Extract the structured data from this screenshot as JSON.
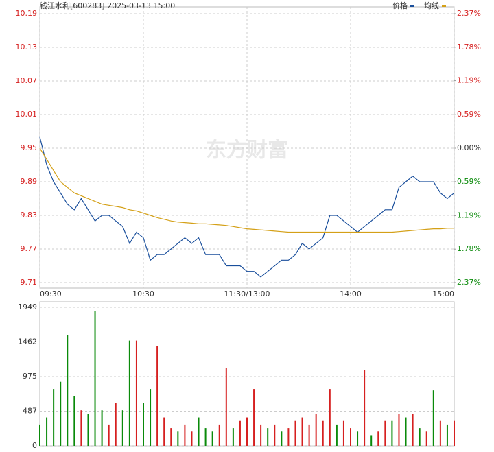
{
  "chart_data": [
    {
      "type": "line",
      "title": "钱江水利[600283] 2025-03-13 15:00",
      "watermark": "东方财富",
      "x": [
        0,
        4,
        8,
        12,
        16,
        20,
        24,
        28,
        32,
        36,
        40,
        44,
        48,
        52,
        56,
        60,
        64,
        68,
        72,
        76,
        80,
        84,
        88,
        92,
        96,
        100,
        104,
        108,
        112,
        116,
        120,
        124,
        128,
        132,
        136,
        140,
        144,
        148,
        152,
        156,
        160,
        164,
        168,
        172,
        176,
        180,
        184,
        188,
        192,
        196,
        200,
        204,
        208,
        212,
        216,
        220,
        224,
        228,
        232,
        236,
        240
      ],
      "xlim": [
        0,
        240
      ],
      "xticks": [
        {
          "value": 0,
          "label": "09:30"
        },
        {
          "value": 60,
          "label": "10:30"
        },
        {
          "value": 120,
          "label": "11:30/13:00"
        },
        {
          "value": 180,
          "label": "14:00"
        },
        {
          "value": 240,
          "label": "15:00"
        }
      ],
      "ylim": [
        9.71,
        10.19
      ],
      "yticks": [
        9.71,
        9.77,
        9.83,
        9.89,
        9.95,
        10.01,
        10.07,
        10.13,
        10.19
      ],
      "y2lim": [
        -2.37,
        2.37
      ],
      "y2ticks": [
        {
          "value": -2.37,
          "label": "2.37%"
        },
        {
          "value": -1.78,
          "label": "1.78%"
        },
        {
          "value": -1.19,
          "label": "1.19%"
        },
        {
          "value": -0.59,
          "label": "0.59%"
        },
        {
          "value": 0,
          "label": "0.00%"
        },
        {
          "value": 0.59,
          "label": "0.59%"
        },
        {
          "value": 1.19,
          "label": "1.19%"
        },
        {
          "value": 1.78,
          "label": "1.78%"
        },
        {
          "value": 2.37,
          "label": "2.37%"
        }
      ],
      "grid": true,
      "series": [
        {
          "name": "价格",
          "color": "#1a4f9c",
          "values": [
            9.97,
            9.92,
            9.89,
            9.87,
            9.85,
            9.84,
            9.86,
            9.84,
            9.82,
            9.83,
            9.83,
            9.82,
            9.81,
            9.78,
            9.8,
            9.79,
            9.75,
            9.76,
            9.76,
            9.77,
            9.78,
            9.79,
            9.78,
            9.79,
            9.76,
            9.76,
            9.76,
            9.74,
            9.74,
            9.74,
            9.73,
            9.73,
            9.72,
            9.73,
            9.74,
            9.75,
            9.75,
            9.76,
            9.78,
            9.77,
            9.78,
            9.79,
            9.83,
            9.83,
            9.82,
            9.81,
            9.8,
            9.81,
            9.82,
            9.83,
            9.84,
            9.84,
            9.88,
            9.89,
            9.9,
            9.89,
            9.89,
            9.89,
            9.87,
            9.86,
            9.87
          ]
        },
        {
          "name": "均线",
          "color": "#d4a017",
          "values": [
            9.95,
            9.93,
            9.91,
            9.89,
            9.88,
            9.87,
            9.865,
            9.86,
            9.855,
            9.85,
            9.848,
            9.846,
            9.844,
            9.84,
            9.838,
            9.834,
            9.83,
            9.826,
            9.823,
            9.82,
            9.818,
            9.817,
            9.816,
            9.815,
            9.815,
            9.814,
            9.813,
            9.812,
            9.81,
            9.808,
            9.806,
            9.805,
            9.804,
            9.803,
            9.802,
            9.801,
            9.8,
            9.8,
            9.8,
            9.8,
            9.8,
            9.8,
            9.8,
            9.8,
            9.8,
            9.8,
            9.8,
            9.8,
            9.8,
            9.8,
            9.8,
            9.8,
            9.801,
            9.802,
            9.803,
            9.804,
            9.805,
            9.806,
            9.806,
            9.807,
            9.807
          ]
        }
      ]
    },
    {
      "type": "bar",
      "x": [
        0,
        4,
        8,
        12,
        16,
        20,
        24,
        28,
        32,
        36,
        40,
        44,
        48,
        52,
        56,
        60,
        64,
        68,
        72,
        76,
        80,
        84,
        88,
        92,
        96,
        100,
        104,
        108,
        112,
        116,
        120,
        124,
        128,
        132,
        136,
        140,
        144,
        148,
        152,
        156,
        160,
        164,
        168,
        172,
        176,
        180,
        184,
        188,
        192,
        196,
        200,
        204,
        208,
        212,
        216,
        220,
        224,
        228,
        232,
        236,
        240
      ],
      "xlim": [
        0,
        240
      ],
      "ylim": [
        0,
        1949
      ],
      "yticks": [
        0,
        487,
        975,
        1462,
        1949
      ],
      "grid": true,
      "values": [
        300,
        400,
        800,
        900,
        1560,
        700,
        500,
        450,
        1900,
        500,
        300,
        600,
        500,
        1480,
        1480,
        600,
        800,
        1400,
        400,
        250,
        200,
        300,
        200,
        400,
        250,
        200,
        300,
        1100,
        250,
        350,
        400,
        800,
        300,
        250,
        300,
        200,
        250,
        350,
        400,
        300,
        450,
        350,
        800,
        300,
        350,
        250,
        200,
        1070,
        150,
        200,
        350,
        350,
        450,
        400,
        450,
        250,
        200,
        780,
        350,
        300,
        350
      ],
      "colors": [
        "#0a8a0a",
        "#0a8a0a",
        "#0a8a0a",
        "#0a8a0a",
        "#0a8a0a",
        "#0a8a0a",
        "#d62020",
        "#0a8a0a",
        "#0a8a0a",
        "#0a8a0a",
        "#d62020",
        "#d62020",
        "#0a8a0a",
        "#0a8a0a",
        "#d62020",
        "#0a8a0a",
        "#0a8a0a",
        "#d62020",
        "#d62020",
        "#d62020",
        "#0a8a0a",
        "#d62020",
        "#d62020",
        "#0a8a0a",
        "#0a8a0a",
        "#0a8a0a",
        "#d62020",
        "#d62020",
        "#0a8a0a",
        "#d62020",
        "#d62020",
        "#d62020",
        "#d62020",
        "#0a8a0a",
        "#d62020",
        "#0a8a0a",
        "#d62020",
        "#d62020",
        "#d62020",
        "#d62020",
        "#d62020",
        "#d62020",
        "#d62020",
        "#0a8a0a",
        "#d62020",
        "#d62020",
        "#0a8a0a",
        "#d62020",
        "#0a8a0a",
        "#d62020",
        "#d62020",
        "#0a8a0a",
        "#d62020",
        "#0a8a0a",
        "#d62020",
        "#0a8a0a",
        "#d62020",
        "#0a8a0a",
        "#d62020",
        "#0a8a0a",
        "#d62020"
      ]
    }
  ]
}
